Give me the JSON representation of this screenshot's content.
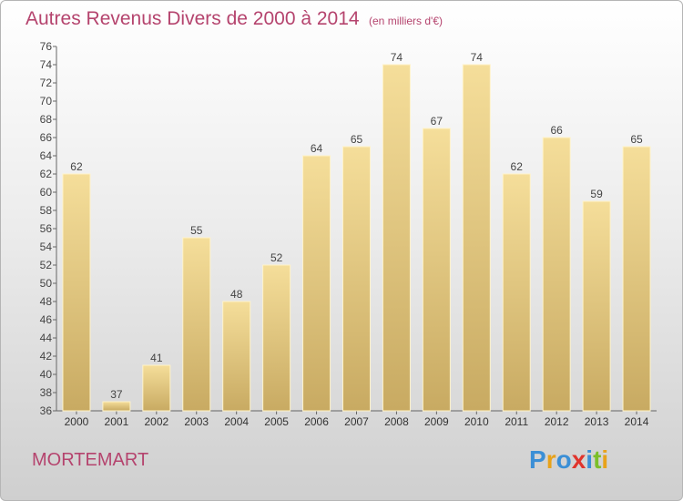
{
  "header": {
    "title": "Autres Revenus Divers de 2000 à 2014",
    "unit": "(en milliers d'€)"
  },
  "commune": "MORTEMART",
  "brand": {
    "letters": [
      "P",
      "r",
      "o",
      "x",
      "i",
      "t",
      "i"
    ],
    "colors": [
      "#3b8fd6",
      "#e8a21a",
      "#3b8fd6",
      "#e0342c",
      "#3b8fd6",
      "#7bbf2a",
      "#e8a21a"
    ]
  },
  "colors": {
    "bar_top": "#f5de9a",
    "bar_bottom": "#c8aa62",
    "title": "#b5446e"
  },
  "chart_data": {
    "type": "bar",
    "title": "Autres Revenus Divers de 2000 à 2014",
    "subtitle": "(en milliers d'€)",
    "categories": [
      "2000",
      "2001",
      "2002",
      "2003",
      "2004",
      "2005",
      "2006",
      "2007",
      "2008",
      "2009",
      "2010",
      "2011",
      "2012",
      "2013",
      "2014"
    ],
    "values": [
      62,
      37,
      41,
      55,
      48,
      52,
      64,
      65,
      74,
      67,
      74,
      62,
      66,
      59,
      65
    ],
    "ylim": [
      36,
      76
    ],
    "yticks": [
      "36",
      "38",
      "40",
      "42",
      "44",
      "46",
      "48",
      "50",
      "52",
      "54",
      "56",
      "58",
      "60",
      "62",
      "64",
      "66",
      "68",
      "70",
      "72",
      "74",
      "76"
    ],
    "grid": false,
    "data_labels": true
  }
}
